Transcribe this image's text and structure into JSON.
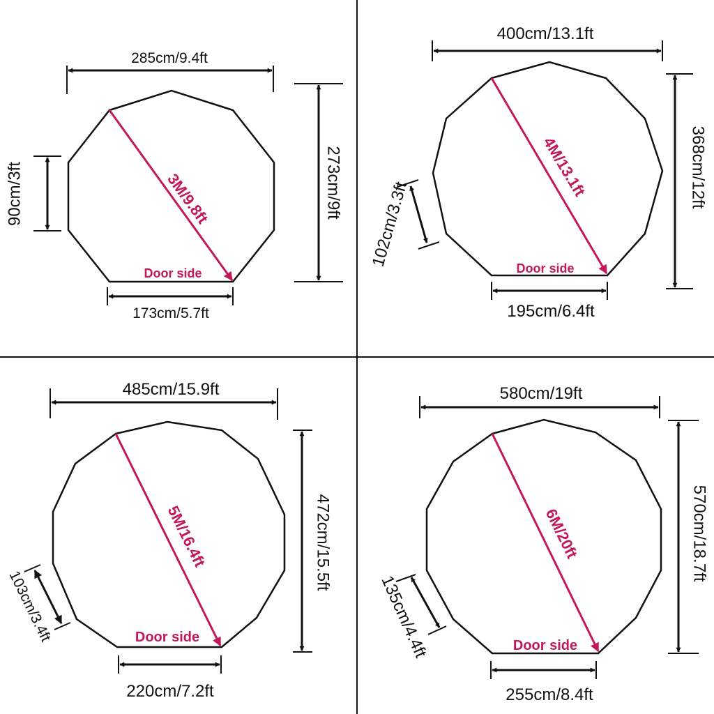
{
  "colors": {
    "outline": "#111111",
    "accent": "#c2185b",
    "divider": "#111111"
  },
  "panels": [
    {
      "id": "3m",
      "width": "285cm/9.4ft",
      "height": "273cm/9ft",
      "panel_side": "90cm/3ft",
      "door_width": "173cm/5.7ft",
      "diagonal": "3M/9.8ft",
      "door_side": "Door side"
    },
    {
      "id": "4m",
      "width": "400cm/13.1ft",
      "height": "368cm/12ft",
      "panel_side": "102cm/3.3ft",
      "door_width": "195cm/6.4ft",
      "diagonal": "4M/13.1ft",
      "door_side": "Door side"
    },
    {
      "id": "5m",
      "width": "485cm/15.9ft",
      "height": "472cm/15.5ft",
      "panel_side": "103cm/3.4ft",
      "door_width": "220cm/7.2ft",
      "diagonal": "5M/16.4ft",
      "door_side": "Door side"
    },
    {
      "id": "6m",
      "width": "580cm/19ft",
      "height": "570cm/18.7ft",
      "panel_side": "135cm/4.4ft",
      "door_width": "255cm/8.4ft",
      "diagonal": "6M/20ft",
      "door_side": "Door side"
    }
  ]
}
